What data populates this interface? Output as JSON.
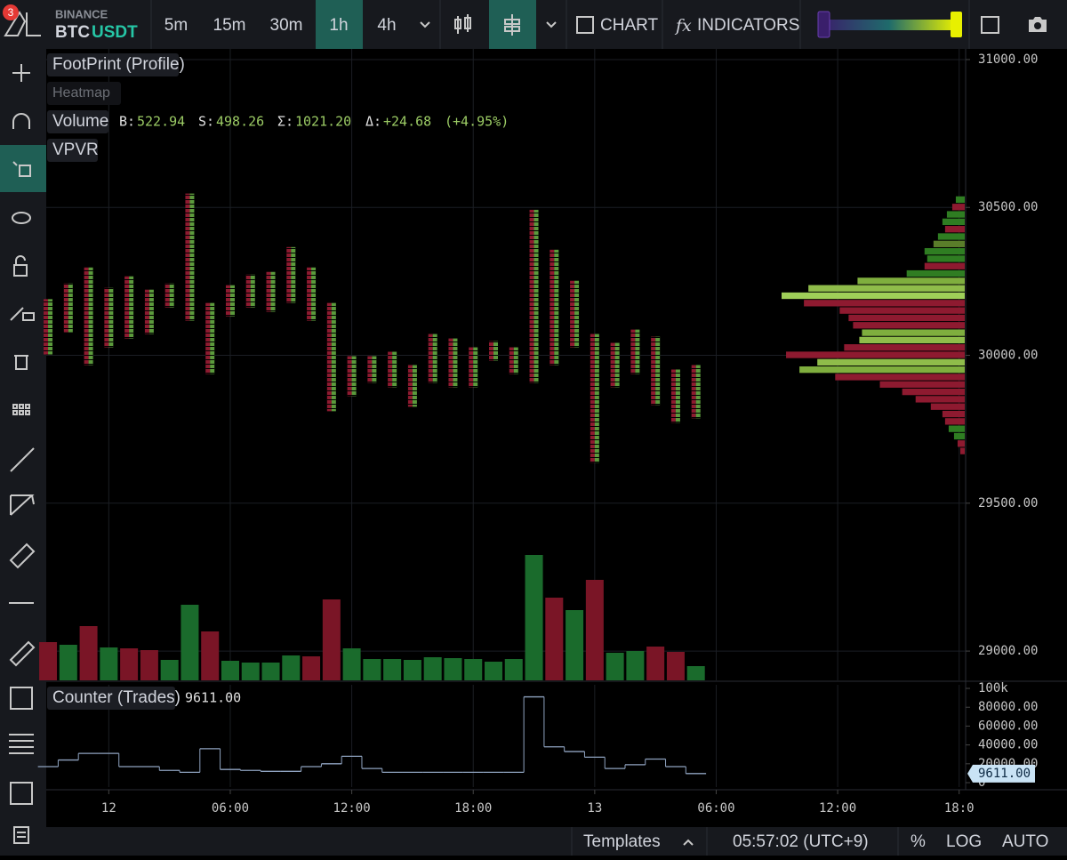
{
  "header": {
    "badge": "3",
    "exchange": "BINANCE",
    "base": "BTC",
    "quote": "USDT",
    "timeframes": [
      "5m",
      "15m",
      "30m",
      "1h",
      "4h"
    ],
    "active_timeframe": 3,
    "chart_button": "CHART",
    "indicators_button": "INDICATORS"
  },
  "legend": {
    "footprint": "FootPrint (Profile)",
    "heatmap": "Heatmap",
    "volume": "Volume",
    "buy_label": "B:",
    "buy": "522.94",
    "sell_label": "S:",
    "sell": "498.26",
    "sum_label": "Σ:",
    "sum": "1021.20",
    "delta_label": "Δ:",
    "delta": "+24.68",
    "delta_pct": "(+4.95%)",
    "vpvr": "VPVR"
  },
  "price_chart": {
    "type": "footprint",
    "x": [
      0,
      1,
      2,
      3,
      4,
      5,
      6,
      7,
      8,
      9,
      10,
      11,
      12,
      13,
      14,
      15,
      16,
      17,
      18,
      19,
      20,
      21,
      22,
      23,
      24,
      25,
      26,
      27,
      28,
      29,
      30,
      31,
      32
    ],
    "high": [
      30190,
      30243,
      30297,
      30228,
      30267,
      30222,
      30243,
      30547,
      30177,
      30237,
      30273,
      30282,
      30366,
      30297,
      30177,
      29997,
      29997,
      30012,
      29967,
      30072,
      30057,
      30027,
      30048,
      30027,
      30492,
      30357,
      30252,
      30072,
      30042,
      30087,
      30063,
      29952,
      29967
    ],
    "low": [
      30003,
      30078,
      29967,
      30027,
      30057,
      30072,
      30162,
      30117,
      29937,
      30132,
      30162,
      30147,
      30177,
      30117,
      29811,
      29862,
      29907,
      29892,
      29826,
      29907,
      29892,
      29892,
      29982,
      29937,
      29907,
      29967,
      30027,
      29637,
      29892,
      29937,
      29832,
      29772,
      29787
    ],
    "buy_color": "#5b9a3c",
    "sell_color": "#8e1a30",
    "xlim": [
      -0.09,
      45.32
    ],
    "xticks": [
      {
        "value": 3,
        "label": "12"
      },
      {
        "value": 9,
        "label": "06:00"
      },
      {
        "value": 15,
        "label": "12:00"
      },
      {
        "value": 21,
        "label": "18:00"
      },
      {
        "value": 27,
        "label": "13"
      },
      {
        "value": 33,
        "label": "06:00"
      },
      {
        "value": 39,
        "label": "12:00"
      },
      {
        "value": 45,
        "label": "18:0"
      }
    ],
    "ylim": [
      28901,
      31036
    ],
    "yticks": [
      {
        "value": 31000,
        "label": "31000.00"
      },
      {
        "value": 30500,
        "label": "30500.00"
      },
      {
        "value": 30000,
        "label": "30000.00"
      },
      {
        "value": 29500,
        "label": "29500.00"
      },
      {
        "value": 29000,
        "label": "29000.00"
      }
    ],
    "grid": true,
    "volume": {
      "values": [
        43,
        40,
        61,
        37,
        36,
        34,
        23,
        85,
        55,
        22,
        20,
        20,
        28,
        27,
        91,
        36,
        24,
        24,
        23,
        26,
        25,
        24,
        21,
        24,
        141,
        93,
        79,
        113,
        31,
        33,
        38,
        32,
        16
      ],
      "colors": [
        "#7a1526",
        "#1a6b2c",
        "#7a1526",
        "#1a6b2c",
        "#7a1526",
        "#7a1526",
        "#1a6b2c",
        "#1a6b2c",
        "#7a1526",
        "#1a6b2c",
        "#1a6b2c",
        "#1a6b2c",
        "#1a6b2c",
        "#7a1526",
        "#7a1526",
        "#1a6b2c",
        "#1a6b2c",
        "#1a6b2c",
        "#1a6b2c",
        "#1a6b2c",
        "#1a6b2c",
        "#1a6b2c",
        "#1a6b2c",
        "#1a6b2c",
        "#1a6b2c",
        "#7a1526",
        "#1a6b2c",
        "#7a1526",
        "#1a6b2c",
        "#1a6b2c",
        "#7a1526",
        "#7a1526",
        "#1a6b2c"
      ]
    },
    "profile": {
      "prices": [
        30525,
        30500,
        30475,
        30450,
        30425,
        30400,
        30375,
        30350,
        30325,
        30300,
        30275,
        30250,
        30225,
        30200,
        30175,
        30150,
        30125,
        30100,
        30075,
        30050,
        30025,
        30000,
        29975,
        29950,
        29925,
        29900,
        29875,
        29850,
        29825,
        29800,
        29775,
        29750,
        29725,
        29700,
        29675
      ],
      "values": [
        10,
        14,
        20,
        25,
        22,
        30,
        35,
        45,
        42,
        45,
        65,
        120,
        175,
        205,
        180,
        140,
        130,
        125,
        115,
        118,
        135,
        200,
        165,
        185,
        145,
        95,
        70,
        55,
        38,
        25,
        22,
        18,
        12,
        8,
        5
      ],
      "colors": [
        "#2f7d22",
        "#8e1a30",
        "#2f7d22",
        "#2f7d22",
        "#8e1a30",
        "#2f7d22",
        "#5a7d2a",
        "#2f7d22",
        "#2f7d22",
        "#8e1a30",
        "#2f7d22",
        "#7fae3e",
        "#8fbc4a",
        "#9fcf58",
        "#8e1a30",
        "#8e1a30",
        "#8e1a30",
        "#8e1a30",
        "#7fae3e",
        "#8fbc4a",
        "#8e1a30",
        "#8e1a30",
        "#8fbc4a",
        "#7fae3e",
        "#8e1a30",
        "#8e1a30",
        "#8e1a30",
        "#8e1a30",
        "#8e1a30",
        "#8e1a30",
        "#8e1a30",
        "#2f7d22",
        "#2f7d22",
        "#8e1a30",
        "#8e1a30"
      ]
    }
  },
  "counter_chart": {
    "type": "step",
    "title": "Counter (Trades)",
    "last_value": "9611.00",
    "values": [
      17000,
      24000,
      31000,
      31000,
      17000,
      17000,
      13000,
      11000,
      36000,
      14000,
      13000,
      12000,
      12000,
      17000,
      20000,
      28000,
      15000,
      11000,
      11000,
      11000,
      11000,
      11000,
      11000,
      11000,
      91000,
      38000,
      33000,
      27000,
      15000,
      19000,
      25000,
      17000,
      9611
    ],
    "color": "#8fa3c0",
    "ylim": [
      -4700,
      103800
    ],
    "yticks": [
      {
        "value": 100000,
        "label": "100k"
      },
      {
        "value": 80000,
        "label": "80000.00"
      },
      {
        "value": 60000,
        "label": "60000.00"
      },
      {
        "value": 40000,
        "label": "40000.00"
      },
      {
        "value": 20000,
        "label": "20000.00"
      },
      0
    ]
  },
  "footer": {
    "templates": "Templates",
    "clock": "05:57:02 (UTC+9)",
    "percent": "%",
    "log": "LOG",
    "auto": "AUTO"
  }
}
